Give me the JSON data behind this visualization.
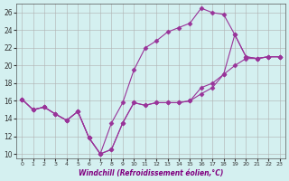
{
  "xlabel": "Windchill (Refroidissement éolien,°C)",
  "background_color": "#d4f0f0",
  "grid_color": "#b0b0b0",
  "line_color": "#993399",
  "ylim": [
    9.5,
    27
  ],
  "xlim": [
    -0.5,
    23.5
  ],
  "yticks": [
    10,
    12,
    14,
    16,
    18,
    20,
    22,
    24,
    26
  ],
  "xticks": [
    0,
    1,
    2,
    3,
    4,
    5,
    6,
    7,
    8,
    9,
    10,
    11,
    12,
    13,
    14,
    15,
    16,
    17,
    18,
    19,
    20,
    21,
    22,
    23
  ],
  "line1_x": [
    0,
    1,
    2,
    3,
    4,
    5,
    6,
    7,
    8,
    9,
    10,
    11,
    12,
    13,
    14,
    15,
    16,
    17,
    18,
    19,
    20,
    21,
    22,
    23
  ],
  "line1_y": [
    16.2,
    15.0,
    15.3,
    14.5,
    13.8,
    14.8,
    11.8,
    10.0,
    10.5,
    13.5,
    15.8,
    15.5,
    15.8,
    15.8,
    15.8,
    16.0,
    16.8,
    17.5,
    19.0,
    20.0,
    20.8,
    20.8,
    21.0,
    21.0
  ],
  "line2_x": [
    0,
    1,
    2,
    3,
    4,
    5,
    6,
    7,
    8,
    9,
    10,
    11,
    12,
    13,
    14,
    15,
    16,
    17,
    18,
    19,
    20,
    21,
    22,
    23
  ],
  "line2_y": [
    16.2,
    15.0,
    15.3,
    14.5,
    13.8,
    14.8,
    11.8,
    10.0,
    13.5,
    15.8,
    19.5,
    22.0,
    22.8,
    23.8,
    24.3,
    24.8,
    26.5,
    26.0,
    25.8,
    23.5,
    21.0,
    20.8,
    21.0,
    21.0
  ],
  "line3_x": [
    0,
    1,
    2,
    3,
    4,
    5,
    6,
    7,
    8,
    9,
    10,
    11,
    12,
    13,
    14,
    15,
    16,
    17,
    18,
    19,
    20,
    21,
    22,
    23
  ],
  "line3_y": [
    16.2,
    15.0,
    15.3,
    14.5,
    13.8,
    14.8,
    11.8,
    10.0,
    10.5,
    13.5,
    15.8,
    15.5,
    15.8,
    15.8,
    15.8,
    16.0,
    17.5,
    18.0,
    19.0,
    23.5,
    21.0,
    20.8,
    21.0,
    21.0
  ]
}
